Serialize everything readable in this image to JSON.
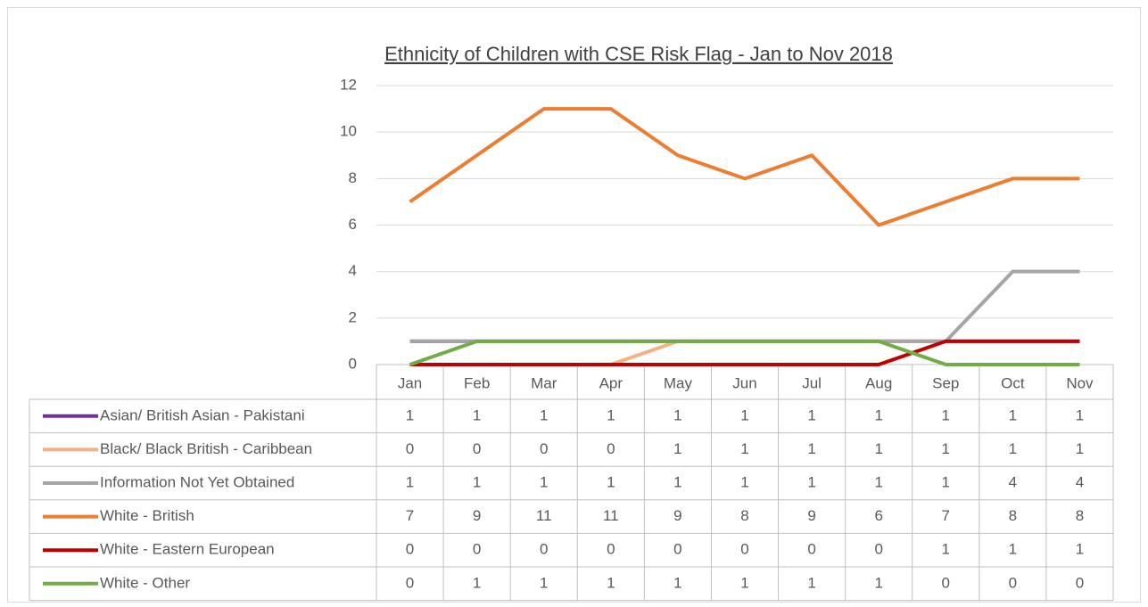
{
  "chart_data": {
    "type": "line",
    "title": "Ethnicity of Children with CSE Risk Flag - Jan to Nov 2018",
    "categories": [
      "Jan",
      "Feb",
      "Mar",
      "Apr",
      "May",
      "Jun",
      "Jul",
      "Aug",
      "Sep",
      "Oct",
      "Nov"
    ],
    "series": [
      {
        "name": "Asian/ British Asian - Pakistani",
        "color": "#7030a0",
        "values": [
          1,
          1,
          1,
          1,
          1,
          1,
          1,
          1,
          1,
          1,
          1
        ]
      },
      {
        "name": "Black/ Black British - Caribbean",
        "color": "#f4b183",
        "values": [
          0,
          0,
          0,
          0,
          1,
          1,
          1,
          1,
          1,
          1,
          1
        ]
      },
      {
        "name": "Information Not Yet Obtained",
        "color": "#a5a5a5",
        "values": [
          1,
          1,
          1,
          1,
          1,
          1,
          1,
          1,
          1,
          4,
          4
        ]
      },
      {
        "name": "White - British",
        "color": "#ed7d31",
        "values": [
          7,
          9,
          11,
          11,
          9,
          8,
          9,
          6,
          7,
          8,
          8
        ]
      },
      {
        "name": "White - Eastern European",
        "color": "#c00000",
        "values": [
          0,
          0,
          0,
          0,
          0,
          0,
          0,
          0,
          1,
          1,
          1
        ]
      },
      {
        "name": "White - Other",
        "color": "#70ad47",
        "values": [
          0,
          1,
          1,
          1,
          1,
          1,
          1,
          1,
          0,
          0,
          0
        ]
      }
    ],
    "ylim": [
      0,
      12
    ],
    "yticks": [
      0,
      2,
      4,
      6,
      8,
      10,
      12
    ],
    "grid": true
  }
}
